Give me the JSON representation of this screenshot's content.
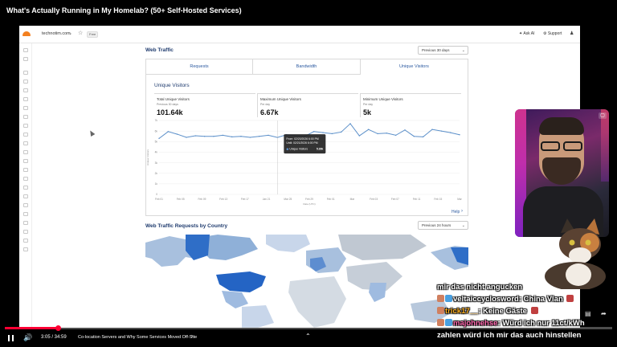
{
  "video": {
    "title": "What's Actually Running in My Homelab? (50+ Self-Hosted Services)",
    "time": "3:05 / 34:59",
    "chapter": "Co-location Servers and Why Some Services Moved Off-Site",
    "progress": 0.088
  },
  "dashboard": {
    "domain": "technotim.com",
    "plan": "Free",
    "ask_ai": "Ask AI",
    "support": "Support",
    "web_traffic": {
      "title": "Web Traffic",
      "range": "Previous 30 days",
      "tabs": [
        "Requests",
        "Bandwidth",
        "Unique Visitors"
      ],
      "active_tab": "Unique Visitors",
      "chart_heading": "Unique Visitors",
      "stats": [
        {
          "label": "Total Unique Visitors",
          "sub": "Previous 30 days",
          "value": "101.64k"
        },
        {
          "label": "Maximum Unique Visitors",
          "sub": "Per day",
          "value": "6.67k"
        },
        {
          "label": "Minimum Unique Visitors",
          "sub": "Per day",
          "value": "5k"
        }
      ],
      "tooltip": {
        "from": "From: 02/20/2026 6:00 PM",
        "until": "Until: 02/21/2026 6:00 PM",
        "series": "Unique Visitors",
        "value": "5.39k"
      },
      "help": "Help"
    },
    "requests_by_country": {
      "title": "Web Traffic Requests by Country",
      "range": "Previous 24 hours"
    }
  },
  "chart_data": {
    "type": "line",
    "title": "Unique Visitors",
    "ylabel": "Unique Visitors",
    "xlabel": "Date (UTC)",
    "ylim": [
      0,
      7000
    ],
    "y_ticks": [
      "0",
      "1k",
      "2k",
      "3k",
      "4k",
      "5k",
      "6k",
      "7k"
    ],
    "x_ticks": [
      "Feb 01",
      "Feb 05",
      "Feb 09",
      "Feb 13",
      "Feb 17",
      "Jan 21",
      "Mar 25",
      "Feb 29",
      "Feb 01",
      "Mar",
      "Feb 03",
      "Feb 07",
      "Feb 11",
      "Feb 15",
      "Mar"
    ],
    "series": [
      {
        "name": "Unique Visitors",
        "color": "#5b8fc9",
        "values": [
          5300,
          5950,
          5700,
          5400,
          5550,
          5500,
          5500,
          5600,
          5450,
          5500,
          5400,
          5500,
          5600,
          5390,
          5650,
          5550,
          5500,
          5950,
          5850,
          5750,
          5900,
          6700,
          5550,
          6150,
          5750,
          5800,
          5600,
          6100,
          5500,
          5450,
          6150,
          6000,
          5850,
          5650
        ]
      }
    ]
  },
  "chat": [
    {
      "user": "",
      "message": "mir das nicht angucken",
      "color": "#ffffff"
    },
    {
      "user": "veltaiccyclosword",
      "message": "China Vlan",
      "color": "#ffffff"
    },
    {
      "user": "trick17__",
      "message": "Keine Gäste",
      "color": "#ffb020"
    },
    {
      "user": "majohnehse",
      "message": "Würd ich nur 11ct/kWh",
      "color": "#ff6ab0"
    },
    {
      "user": "",
      "message": "zahlen würd ich mir das auch hinstellen",
      "color": "#ffffff"
    }
  ]
}
